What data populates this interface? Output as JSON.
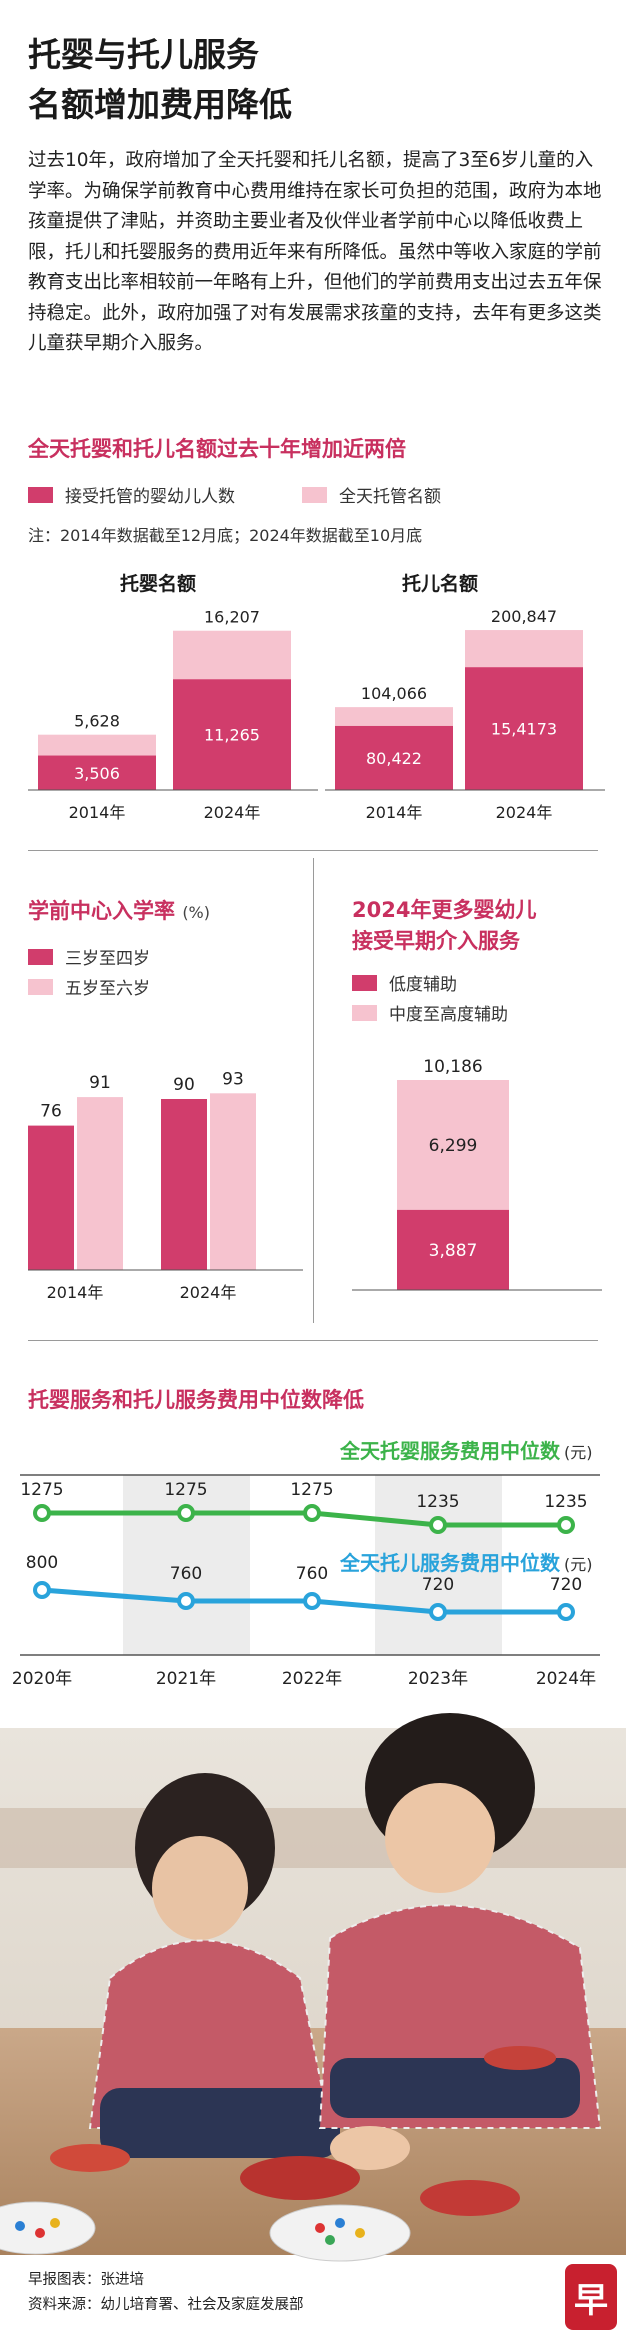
{
  "title_line1": "托婴与托儿服务",
  "title_line2": "名额增加费用降低",
  "intro": "过去10年，政府增加了全天托婴和托儿名额，提高了3至6岁儿童的入学率。为确保学前教育中心费用维持在家长可负担的范围，政府为本地孩童提供了津贴，并资助主要业者及伙伴业者学前中心以降低收费上限，托儿和托婴服务的费用近年来有所降低。虽然中等收入家庭的学前教育支出比率相较前一年略有上升，但他们的学前费用支出过去五年保持稳定。此外，政府加强了对有发展需求孩童的支持，去年有更多这类儿童获早期介入服务。",
  "colors": {
    "dark": "#d13d6c",
    "light": "#f6c3cf",
    "green": "#3cb34a",
    "blue": "#29a3db",
    "accent": "#c8305f"
  },
  "section1": {
    "title": "全天托婴和托儿名额过去十年增加近两倍",
    "legend_enrolled": "接受托管的婴幼儿人数",
    "legend_capacity": "全天托管名额",
    "note": "注：2014年数据截至12月底；2024年数据截至10月底"
  },
  "section2": {
    "title": "学前中心入学率",
    "unit": "(%)",
    "legend_a": "三岁至四岁",
    "legend_b": "五岁至六岁"
  },
  "section3": {
    "title_line1": "2024年更多婴幼儿",
    "title_line2": "接受早期介入服务",
    "legend_low": "低度辅助",
    "legend_mid": "中度至高度辅助"
  },
  "section4": {
    "title": "托婴服务和托儿服务费用中位数降低",
    "infant_label": "全天托婴服务费用中位数",
    "child_label": "全天托儿服务费用中位数",
    "unit": "(元)"
  },
  "chart_data": [
    {
      "type": "bar",
      "title": "托婴名额",
      "categories": [
        "2014年",
        "2024年"
      ],
      "series": [
        {
          "name": "接受托管的婴幼儿人数",
          "values": [
            3506,
            11265
          ],
          "labels": [
            "3,506",
            "11,265"
          ]
        },
        {
          "name": "全天托管名额",
          "values": [
            5628,
            16207
          ],
          "labels": [
            "5,628",
            "16,207"
          ]
        }
      ],
      "ylim": [
        0,
        17500
      ]
    },
    {
      "type": "bar",
      "title": "托儿名额",
      "categories": [
        "2014年",
        "2024年"
      ],
      "series": [
        {
          "name": "接受托管的婴幼儿人数",
          "values": [
            80422,
            154173
          ],
          "labels": [
            "80,422",
            "15,4173"
          ]
        },
        {
          "name": "全天托管名额",
          "values": [
            104066,
            200847
          ],
          "labels": [
            "104,066",
            "200,847"
          ]
        }
      ],
      "ylim": [
        0,
        216000
      ]
    },
    {
      "type": "bar",
      "title": "学前中心入学率 (%)",
      "categories": [
        "2014年",
        "2024年"
      ],
      "series": [
        {
          "name": "三岁至四岁",
          "values": [
            76,
            90
          ]
        },
        {
          "name": "五岁至六岁",
          "values": [
            91,
            93
          ]
        }
      ],
      "ylim": [
        0,
        100
      ]
    },
    {
      "type": "bar",
      "title": "2024年更多婴幼儿接受早期介入服务",
      "categories": [
        "2024年"
      ],
      "total": 10186,
      "total_label": "10,186",
      "series": [
        {
          "name": "低度辅助",
          "values": [
            3887
          ],
          "labels": [
            "3,887"
          ]
        },
        {
          "name": "中度至高度辅助",
          "values": [
            6299
          ],
          "labels": [
            "6,299"
          ]
        }
      ],
      "ylim": [
        0,
        10186
      ]
    },
    {
      "type": "line",
      "title": "托婴服务和托儿服务费用中位数降低",
      "x": [
        "2020年",
        "2021年",
        "2022年",
        "2023年",
        "2024年"
      ],
      "series": [
        {
          "name": "全天托婴服务费用中位数",
          "values": [
            1275,
            1275,
            1275,
            1235,
            1235
          ]
        },
        {
          "name": "全天托儿服务费用中位数",
          "values": [
            800,
            760,
            760,
            720,
            720
          ]
        }
      ],
      "ylabel": "元"
    }
  ],
  "credits": {
    "line1": "早报图表：张进培",
    "line2": "资料来源：幼儿培育署、社会及家庭发展部",
    "logo": "早"
  }
}
